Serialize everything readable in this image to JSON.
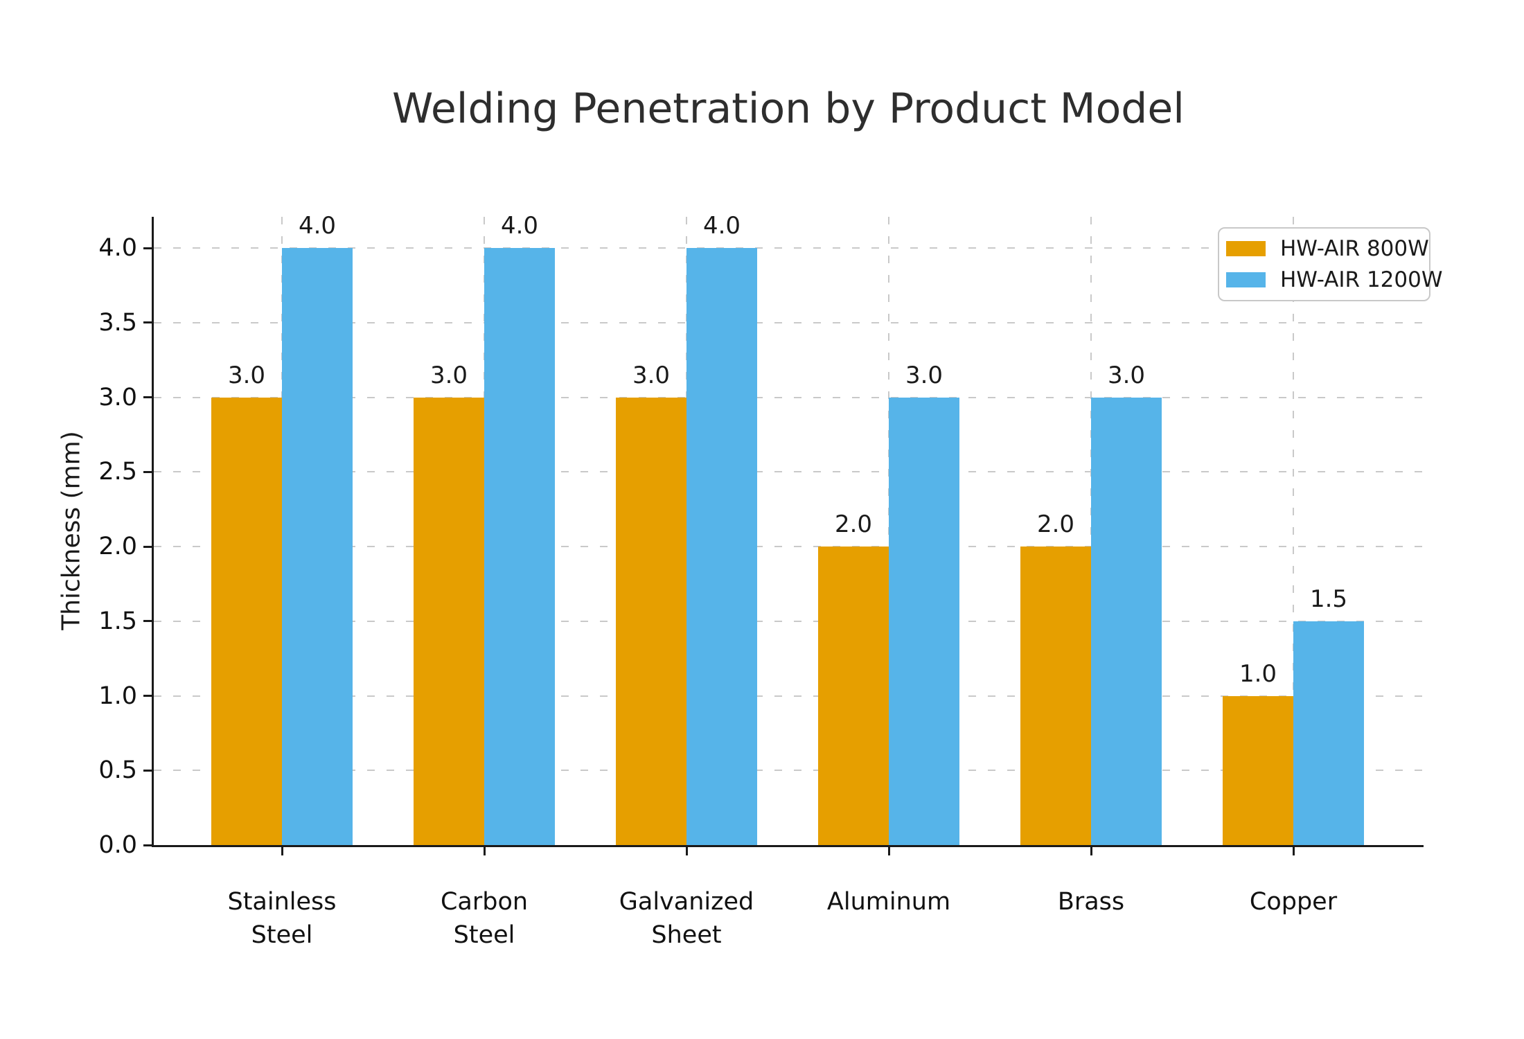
{
  "title": "Welding Penetration by Product Model",
  "chart_data": {
    "type": "bar",
    "title": "Welding Penetration by Product Model",
    "xlabel": "",
    "ylabel": "Thickness (mm)",
    "categories": [
      "Stainless\nSteel",
      "Carbon\nSteel",
      "Galvanized\nSheet",
      "Aluminum",
      "Brass",
      "Copper"
    ],
    "series": [
      {
        "name": "HW-AIR 800W",
        "color": "#E69F00",
        "values": [
          3.0,
          3.0,
          3.0,
          2.0,
          2.0,
          1.0
        ]
      },
      {
        "name": "HW-AIR 1200W",
        "color": "#56B4E9",
        "values": [
          4.0,
          4.0,
          4.0,
          3.0,
          3.0,
          1.5
        ]
      }
    ],
    "bar_value_labels": [
      "3.0",
      "4.0",
      "2.0",
      "1.0",
      "1.5"
    ],
    "yticks": [
      0.0,
      0.5,
      1.0,
      1.5,
      2.0,
      2.5,
      3.0,
      3.5,
      4.0
    ],
    "ytick_labels": [
      "0.0",
      "0.5",
      "1.0",
      "1.5",
      "2.0",
      "2.5",
      "3.0",
      "3.5",
      "4.0"
    ],
    "ylim": [
      0,
      4.21
    ],
    "grid": true,
    "grid_style": "dashed",
    "legend_position": "upper right",
    "value_label_format": "one-decimal"
  },
  "legend": {
    "items": [
      {
        "label": "HW-AIR 800W",
        "color": "#E69F00"
      },
      {
        "label": "HW-AIR 1200W",
        "color": "#56B4E9"
      }
    ]
  }
}
